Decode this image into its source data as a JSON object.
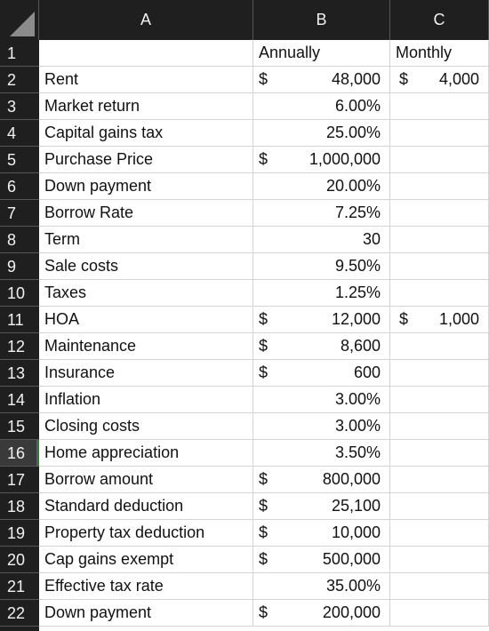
{
  "columns": [
    "A",
    "B",
    "C"
  ],
  "rows": [
    {
      "num": "1",
      "a": "",
      "b_cur": "",
      "b_val": "",
      "b_text": "Annually",
      "c_cur": "",
      "c_val": "",
      "c_text": "Monthly"
    },
    {
      "num": "2",
      "a": "Rent",
      "b_cur": "$",
      "b_val": "48,000",
      "b_text": "",
      "c_cur": "$",
      "c_val": "4,000",
      "c_text": ""
    },
    {
      "num": "3",
      "a": "Market return",
      "b_cur": "",
      "b_val": "6.00%",
      "b_text": "",
      "c_cur": "",
      "c_val": "",
      "c_text": ""
    },
    {
      "num": "4",
      "a": "Capital gains tax",
      "b_cur": "",
      "b_val": "25.00%",
      "b_text": "",
      "c_cur": "",
      "c_val": "",
      "c_text": ""
    },
    {
      "num": "5",
      "a": "Purchase Price",
      "b_cur": "$",
      "b_val": "1,000,000",
      "b_text": "",
      "c_cur": "",
      "c_val": "",
      "c_text": ""
    },
    {
      "num": "6",
      "a": "Down payment",
      "b_cur": "",
      "b_val": "20.00%",
      "b_text": "",
      "c_cur": "",
      "c_val": "",
      "c_text": ""
    },
    {
      "num": "7",
      "a": "Borrow Rate",
      "b_cur": "",
      "b_val": "7.25%",
      "b_text": "",
      "c_cur": "",
      "c_val": "",
      "c_text": ""
    },
    {
      "num": "8",
      "a": "Term",
      "b_cur": "",
      "b_val": "30",
      "b_text": "",
      "c_cur": "",
      "c_val": "",
      "c_text": ""
    },
    {
      "num": "9",
      "a": "Sale costs",
      "b_cur": "",
      "b_val": "9.50%",
      "b_text": "",
      "c_cur": "",
      "c_val": "",
      "c_text": ""
    },
    {
      "num": "10",
      "a": "Taxes",
      "b_cur": "",
      "b_val": "1.25%",
      "b_text": "",
      "c_cur": "",
      "c_val": "",
      "c_text": ""
    },
    {
      "num": "11",
      "a": "HOA",
      "b_cur": "$",
      "b_val": "12,000",
      "b_text": "",
      "c_cur": "$",
      "c_val": "1,000",
      "c_text": ""
    },
    {
      "num": "12",
      "a": "Maintenance",
      "b_cur": "$",
      "b_val": "8,600",
      "b_text": "",
      "c_cur": "",
      "c_val": "",
      "c_text": ""
    },
    {
      "num": "13",
      "a": "Insurance",
      "b_cur": "$",
      "b_val": "600",
      "b_text": "",
      "c_cur": "",
      "c_val": "",
      "c_text": ""
    },
    {
      "num": "14",
      "a": "Inflation",
      "b_cur": "",
      "b_val": "3.00%",
      "b_text": "",
      "c_cur": "",
      "c_val": "",
      "c_text": ""
    },
    {
      "num": "15",
      "a": "Closing costs",
      "b_cur": "",
      "b_val": "3.00%",
      "b_text": "",
      "c_cur": "",
      "c_val": "",
      "c_text": ""
    },
    {
      "num": "16",
      "a": "Home appreciation",
      "b_cur": "",
      "b_val": "3.50%",
      "b_text": "",
      "c_cur": "",
      "c_val": "",
      "c_text": ""
    },
    {
      "num": "17",
      "a": "Borrow amount",
      "b_cur": "$",
      "b_val": "800,000",
      "b_text": "",
      "c_cur": "",
      "c_val": "",
      "c_text": ""
    },
    {
      "num": "18",
      "a": "Standard deduction",
      "b_cur": "$",
      "b_val": "25,100",
      "b_text": "",
      "c_cur": "",
      "c_val": "",
      "c_text": ""
    },
    {
      "num": "19",
      "a": "Property tax deduction",
      "b_cur": "$",
      "b_val": "10,000",
      "b_text": "",
      "c_cur": "",
      "c_val": "",
      "c_text": ""
    },
    {
      "num": "20",
      "a": "Cap gains exempt",
      "b_cur": "$",
      "b_val": "500,000",
      "b_text": "",
      "c_cur": "",
      "c_val": "",
      "c_text": ""
    },
    {
      "num": "21",
      "a": "Effective tax rate",
      "b_cur": "",
      "b_val": "35.00%",
      "b_text": "",
      "c_cur": "",
      "c_val": "",
      "c_text": ""
    },
    {
      "num": "22",
      "a": "Down payment",
      "b_cur": "$",
      "b_val": "200,000",
      "b_text": "",
      "c_cur": "",
      "c_val": "",
      "c_text": ""
    }
  ],
  "selected_row": "16",
  "colors": {
    "header_bg": "#1f1f1f",
    "header_text": "#f2f2f2",
    "selection_accent": "#2e7d32"
  }
}
